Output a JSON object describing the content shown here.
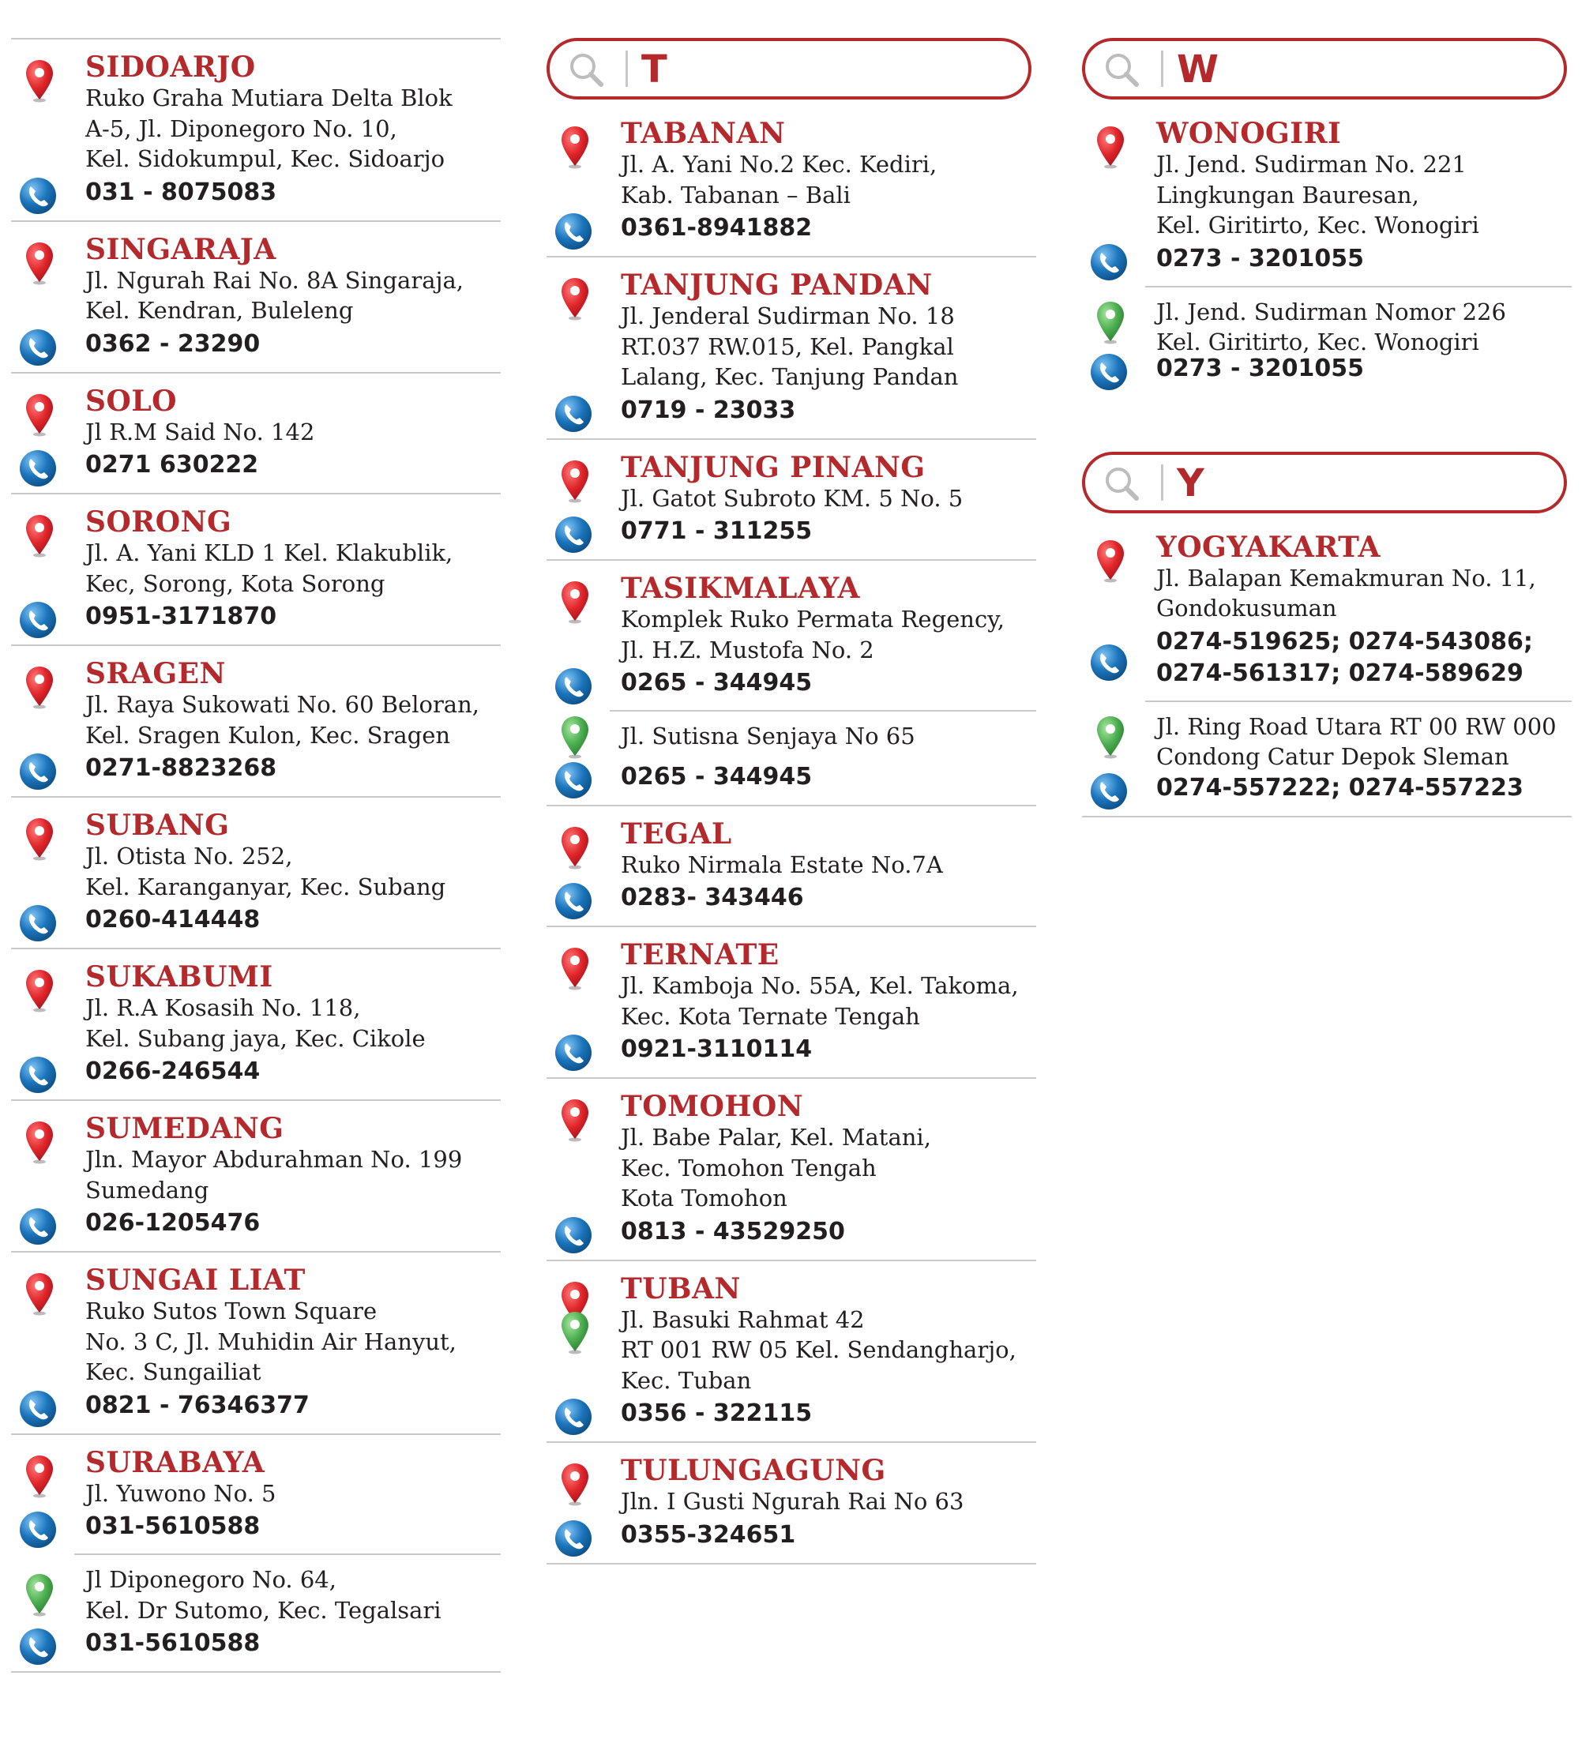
{
  "columns": [
    {
      "header_letter": "",
      "entries": [
        {
          "city": "SIDOARJO",
          "address": "Ruko Graha Mutiara Delta Blok\nA-5, Jl. Diponegoro No. 10,\nKel. Sidokumpul, Kec. Sidoarjo",
          "phone": "031 - 8075083"
        },
        {
          "city": "SINGARAJA",
          "address": "Jl. Ngurah Rai No. 8A Singaraja,\nKel. Kendran, Buleleng",
          "phone": "0362 - 23290"
        },
        {
          "city": "SOLO",
          "address": "Jl R.M Said No. 142",
          "phone": "0271 630222"
        },
        {
          "city": "SORONG",
          "address": "Jl. A. Yani KLD 1 Kel. Klakublik,\nKec, Sorong, Kota Sorong",
          "phone": "0951-3171870"
        },
        {
          "city": "SRAGEN",
          "address": "Jl. Raya Sukowati No. 60 Beloran,\nKel. Sragen Kulon, Kec. Sragen",
          "phone": "0271-8823268"
        },
        {
          "city": "SUBANG",
          "address": "Jl. Otista No. 252,\nKel. Karanganyar, Kec. Subang",
          "phone": "0260-414448"
        },
        {
          "city": "SUKABUMI",
          "address": "Jl. R.A Kosasih No. 118,\nKel. Subang jaya, Kec. Cikole",
          "phone": "0266-246544"
        },
        {
          "city": "SUMEDANG",
          "address": "Jln. Mayor Abdurahman No. 199\nSumedang",
          "phone": "026-1205476"
        },
        {
          "city": "SUNGAI LIAT",
          "address": "Ruko Sutos Town Square\nNo. 3 C, Jl. Muhidin Air Hanyut,\nKec. Sungailiat",
          "phone": "0821 - 76346377"
        },
        {
          "city": "SURABAYA",
          "address": "Jl. Yuwono No. 5",
          "phone": "031-5610588",
          "branch": {
            "address": "Jl Diponegoro No. 64,\nKel. Dr Sutomo, Kec. Tegalsari",
            "phone": "031-5610588"
          }
        }
      ]
    },
    {
      "header_letter": "T",
      "entries": [
        {
          "city": "TABANAN",
          "address": "Jl. A. Yani No.2 Kec. Kediri,\nKab. Tabanan – Bali",
          "phone": "0361-8941882"
        },
        {
          "city": "TANJUNG PANDAN",
          "address": "Jl. Jenderal Sudirman No. 18\nRT.037 RW.015, Kel. Pangkal\nLalang, Kec. Tanjung Pandan",
          "phone": "0719 - 23033"
        },
        {
          "city": "TANJUNG PINANG",
          "address": "Jl. Gatot Subroto KM. 5 No. 5",
          "phone": "0771 - 311255"
        },
        {
          "city": "TASIKMALAYA",
          "address": "Komplek Ruko Permata Regency,\nJl. H.Z. Mustofa No. 2",
          "phone": "0265 - 344945",
          "branch": {
            "address": "Jl. Sutisna Senjaya No 65",
            "phone": "0265 - 344945"
          }
        },
        {
          "city": "TEGAL",
          "address": "Ruko Nirmala Estate No.7A",
          "phone": "0283- 343446"
        },
        {
          "city": "TERNATE",
          "address": "Jl. Kamboja No. 55A, Kel. Takoma,\nKec. Kota Ternate Tengah",
          "phone": "0921-3110114"
        },
        {
          "city": "TOMOHON",
          "address": "Jl. Babe Palar, Kel. Matani,\nKec. Tomohon Tengah\nKota Tomohon",
          "phone": "0813 - 43529250"
        },
        {
          "city": "TUBAN",
          "address": "Jl. Basuki Rahmat 42\nRT 001 RW 05 Kel. Sendangharjo,\nKec. Tuban",
          "phone": "0356 - 322115",
          "double_pin": true
        },
        {
          "city": "TULUNGAGUNG",
          "address": "Jln. I Gusti Ngurah Rai No 63",
          "phone": "0355-324651"
        }
      ]
    },
    {
      "header_letter": "W",
      "entries": [
        {
          "city": "WONOGIRI",
          "address": "Jl. Jend. Sudirman No. 221\nLingkungan Bauresan,\nKel. Giritirto, Kec. Wonogiri",
          "phone": "0273 - 3201055",
          "branch": {
            "address": "Jl. Jend. Sudirman Nomor 226\nKel. Giritirto, Kec. Wonogiri",
            "phone": "0273 - 3201055"
          }
        }
      ],
      "header_letter_2": "Y",
      "entries_2": [
        {
          "city": "YOGYAKARTA",
          "address": "Jl. Balapan Kemakmuran No. 11,\nGondokusuman",
          "phone": "0274-519625; 0274-543086;\n0274-561317; 0274-589629",
          "branch": {
            "address": "Jl. Ring Road Utara RT 00 RW 000\nCondong Catur Depok Sleman",
            "phone": "0274-557222; 0274-557223"
          }
        }
      ]
    }
  ],
  "colors": {
    "accent": "#b3292c",
    "pin_main": "#e0262b",
    "pin_branch": "#4caf50",
    "phone_icon": "#1c75bc"
  },
  "icons": {
    "header": "search-icon",
    "main_location": "red-pin-icon",
    "branch_location": "green-pin-icon",
    "phone": "phone-icon"
  }
}
